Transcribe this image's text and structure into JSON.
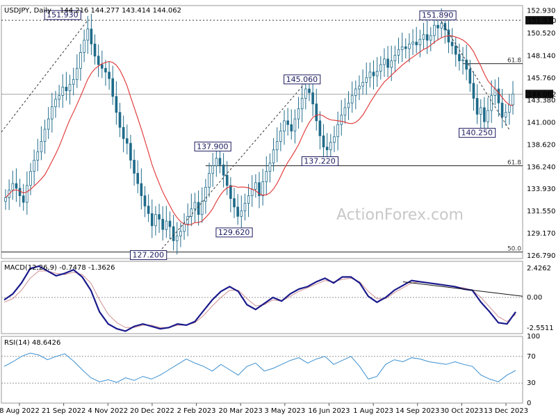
{
  "header": {
    "symbol_line": "USDJPY, Daily",
    "ohlc": "144.216 144.277 143.414 144.062"
  },
  "watermark": "ActionForex.com",
  "colors": {
    "candle": "#1f6b8a",
    "sma": "#e03030",
    "macd": "#1a1a8c",
    "signal": "#d09090",
    "rsi": "#3a8fd0",
    "trend": "#000000",
    "label_border": "#1a1a5e"
  },
  "chart_data": [
    {
      "type": "candlestick",
      "panel": "price",
      "title": "USDJPY, Daily",
      "ylim": [
        126.5,
        153.5
      ],
      "y_ticks": [
        "152.930",
        "150.520",
        "148.140",
        "145.760",
        "143.380",
        "141.000",
        "138.620",
        "136.240",
        "133.930",
        "131.550",
        "129.170",
        "126.790"
      ],
      "x_ticks": [
        "8 Aug 2022",
        "21 Sep 2022",
        "4 Nov 2022",
        "20 Dec 2022",
        "2 Feb 2023",
        "20 Mar 2023",
        "3 May 2023",
        "16 Jun 2023",
        "1 Aug 2023",
        "14 Sep 2023",
        "30 Oct 2023",
        "13 Dec 2023"
      ],
      "close": [
        133.0,
        133.8,
        134.5,
        134.0,
        133.2,
        132.5,
        134.3,
        135.8,
        137.0,
        137.9,
        139.0,
        140.3,
        141.4,
        142.7,
        143.5,
        143.9,
        144.8,
        144.4,
        145.1,
        145.6,
        146.8,
        148.5,
        149.8,
        151.0,
        149.4,
        148.1,
        147.2,
        146.8,
        146.4,
        145.7,
        143.8,
        142.1,
        140.5,
        139.3,
        138.8,
        137.0,
        135.6,
        134.5,
        133.2,
        132.1,
        131.3,
        130.0,
        131.2,
        130.7,
        129.6,
        130.5,
        129.9,
        128.4,
        128.9,
        129.4,
        130.2,
        131.0,
        131.8,
        132.5,
        131.2,
        132.6,
        134.1,
        135.6,
        136.4,
        137.2,
        136.5,
        135.4,
        134.3,
        132.9,
        132.0,
        131.0,
        131.6,
        132.4,
        133.2,
        133.9,
        134.6,
        133.2,
        134.7,
        135.8,
        136.7,
        138.1,
        139.0,
        140.1,
        141.2,
        140.8,
        140.1,
        141.4,
        142.5,
        143.6,
        144.6,
        144.2,
        143.0,
        141.2,
        139.6,
        138.4,
        138.1,
        138.9,
        139.5,
        140.8,
        141.8,
        142.6,
        143.1,
        143.9,
        144.6,
        144.9,
        145.3,
        145.8,
        146.4,
        146.0,
        146.5,
        147.2,
        147.8,
        146.9,
        147.6,
        148.2,
        148.8,
        149.1,
        148.9,
        149.4,
        149.6,
        149.3,
        149.9,
        150.4,
        149.8,
        150.3,
        151.4,
        151.1,
        151.6,
        150.9,
        149.6,
        149.2,
        148.3,
        147.6,
        147.7,
        146.7,
        145.2,
        143.6,
        141.9,
        142.6,
        141.1,
        142.3,
        143.9,
        144.6,
        143.1,
        141.6,
        142.1,
        142.9,
        144.062
      ],
      "sma_label": "55-day SMA",
      "annotations": [
        {
          "label": "151.930",
          "kind": "high"
        },
        {
          "label": "127.200",
          "kind": "low"
        },
        {
          "label": "137.900",
          "kind": "high"
        },
        {
          "label": "129.620",
          "kind": "low"
        },
        {
          "label": "145.060",
          "kind": "high"
        },
        {
          "label": "137.220",
          "kind": "low"
        },
        {
          "label": "151.890",
          "kind": "high"
        },
        {
          "label": "140.250",
          "kind": "low"
        }
      ],
      "price_labels": {
        "resistance": "151.930",
        "last": "144.062"
      },
      "fib_labels": [
        "61.8",
        "61.8",
        "50.0"
      ]
    },
    {
      "type": "line",
      "panel": "macd",
      "title": "MACD(12,26,9) -0.7478 -1.3626",
      "ylim": [
        -3.0,
        3.0
      ],
      "y_ticks": [
        "2.4262",
        "0.00",
        "-2.5511"
      ],
      "series": [
        {
          "name": "MACD",
          "values": [
            -0.2,
            0.3,
            1.2,
            2.4,
            2.6,
            2.2,
            1.8,
            2.0,
            2.3,
            1.7,
            0.6,
            -1.2,
            -2.2,
            -2.6,
            -2.8,
            -2.4,
            -2.2,
            -2.4,
            -2.6,
            -2.5,
            -2.2,
            -2.3,
            -2.0,
            -1.1,
            -0.2,
            0.5,
            0.9,
            0.5,
            -0.6,
            -1.0,
            -0.5,
            0.0,
            -0.3,
            0.3,
            0.7,
            0.9,
            1.3,
            1.6,
            1.2,
            1.7,
            1.7,
            1.2,
            0.1,
            -0.4,
            0.0,
            0.6,
            1.0,
            1.4,
            1.3,
            1.2,
            1.1,
            1.0,
            0.9,
            0.7,
            0.6,
            -0.4,
            -1.2,
            -2.1,
            -2.2,
            -1.2
          ]
        },
        {
          "name": "Signal",
          "values": [
            -0.4,
            -0.1,
            0.6,
            1.6,
            2.2,
            2.2,
            2.0,
            1.9,
            2.1,
            1.9,
            1.2,
            -0.2,
            -1.4,
            -2.1,
            -2.5,
            -2.5,
            -2.3,
            -2.3,
            -2.5,
            -2.5,
            -2.3,
            -2.3,
            -2.1,
            -1.5,
            -0.7,
            0.0,
            0.6,
            0.6,
            -0.1,
            -0.7,
            -0.6,
            -0.2,
            -0.3,
            0.1,
            0.5,
            0.8,
            1.1,
            1.4,
            1.3,
            1.5,
            1.6,
            1.3,
            0.5,
            -0.1,
            -0.1,
            0.4,
            0.8,
            1.2,
            1.3,
            1.2,
            1.1,
            1.0,
            0.9,
            0.8,
            0.6,
            0.0,
            -0.8,
            -1.6,
            -2.0,
            -1.4
          ]
        }
      ]
    },
    {
      "type": "line",
      "panel": "rsi",
      "title": "RSI(14) 48.6426",
      "ylim": [
        0,
        100
      ],
      "y_ticks": [
        "100",
        "70",
        "30",
        "0"
      ],
      "series": [
        {
          "name": "RSI",
          "values": [
            55,
            62,
            70,
            75,
            72,
            65,
            70,
            74,
            63,
            50,
            38,
            32,
            35,
            31,
            38,
            34,
            40,
            36,
            42,
            50,
            58,
            66,
            60,
            55,
            48,
            58,
            50,
            42,
            55,
            60,
            48,
            52,
            58,
            64,
            68,
            60,
            66,
            70,
            58,
            64,
            70,
            55,
            36,
            40,
            58,
            65,
            62,
            68,
            66,
            62,
            60,
            58,
            62,
            58,
            55,
            42,
            36,
            32,
            42,
            49
          ]
        }
      ]
    }
  ]
}
